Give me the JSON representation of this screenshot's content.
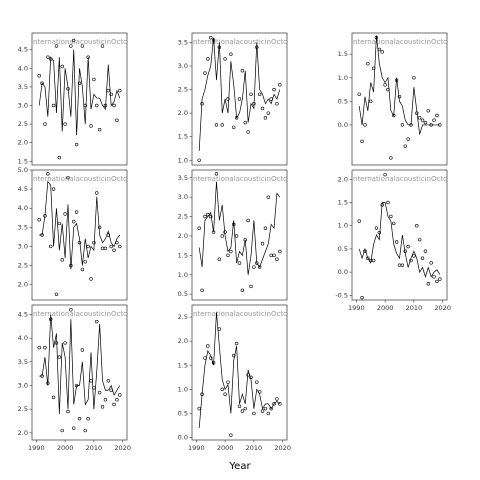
{
  "figure": {
    "xlabel": "Year"
  },
  "chart_data": [
    {
      "type": "line",
      "title": "nternationalacousticinOcto",
      "x": [
        1991,
        1992,
        1993,
        1994,
        1995,
        1996,
        1997,
        1998,
        1999,
        2000,
        2001,
        2002,
        2003,
        2004,
        2005,
        2006,
        2007,
        2008,
        2009,
        2010,
        2011,
        2012,
        2013,
        2014,
        2015,
        2016,
        2017,
        2018,
        2019
      ],
      "xlim": [
        1988.5,
        2021.5
      ],
      "ylim": [
        1.4,
        4.95
      ],
      "yticks": [
        1.5,
        {
          "value": 2,
          "label": "2.0"
        },
        2.5,
        {
          "value": 3,
          "label": "3.0"
        },
        3.5,
        {
          "value": 4,
          "label": "4.0"
        },
        4.5
      ],
      "series": [
        {
          "style": "points",
          "color": "#000000",
          "values": [
            3.8,
            3.6,
            2.5,
            4.3,
            4.25,
            3.0,
            4.6,
            1.6,
            4.05,
            2.5,
            3.45,
            4.6,
            4.75,
            1.95,
            3.6,
            4.6,
            3.0,
            4.3,
            2.45,
            3.7,
            3.0,
            2.35,
            4.6,
            3.0,
            3.4,
            3.3,
            3.0,
            2.6,
            3.4
          ]
        },
        {
          "style": "line",
          "color": "#000000",
          "values": [
            3.0,
            3.6,
            3.5,
            2.7,
            4.3,
            4.2,
            2.8,
            4.3,
            2.3,
            4.0,
            3.5,
            2.7,
            4.5,
            2.2,
            4.0,
            3.5,
            2.5,
            4.3,
            2.9,
            3.3,
            3.2,
            3.2,
            3.0,
            2.9,
            4.1,
            3.0,
            3.1,
            3.4,
            3.2
          ]
        }
      ]
    },
    {
      "type": "line",
      "title": "nternationalacousticinOcto",
      "x": [
        1991,
        1992,
        1993,
        1994,
        1995,
        1996,
        1997,
        1998,
        1999,
        2000,
        2001,
        2002,
        2003,
        2004,
        2005,
        2006,
        2007,
        2008,
        2009,
        2010,
        2011,
        2012,
        2013,
        2014,
        2015,
        2016,
        2017,
        2018,
        2019
      ],
      "xlim": [
        1988.5,
        2021.5
      ],
      "ylim": [
        0.9,
        3.7
      ],
      "yticks": [
        {
          "value": 1,
          "label": "1.0"
        },
        1.5,
        {
          "value": 2,
          "label": "2.0"
        },
        2.5,
        {
          "value": 3,
          "label": "3.0"
        },
        3.5
      ],
      "series": [
        {
          "style": "points",
          "color": "#000000",
          "values": [
            1.0,
            2.2,
            2.85,
            3.15,
            3.6,
            3.55,
            1.75,
            3.4,
            1.75,
            3.15,
            2.3,
            3.25,
            1.7,
            1.9,
            2.3,
            2.9,
            1.8,
            1.6,
            2.4,
            2.2,
            3.4,
            2.4,
            2.1,
            1.9,
            2.0,
            2.3,
            2.5,
            2.2,
            2.6
          ]
        },
        {
          "style": "line",
          "color": "#000000",
          "values": [
            1.2,
            2.3,
            2.5,
            2.8,
            3.0,
            3.6,
            2.7,
            3.5,
            2.0,
            2.3,
            2.0,
            3.1,
            2.6,
            1.9,
            2.0,
            2.3,
            2.9,
            1.8,
            2.2,
            2.1,
            3.5,
            2.5,
            2.4,
            2.2,
            2.3,
            2.2,
            2.4,
            2.3,
            2.5
          ]
        }
      ]
    },
    {
      "type": "line",
      "title": "nternationalacousticinOcto",
      "x": [
        1991,
        1992,
        1993,
        1994,
        1995,
        1996,
        1997,
        1998,
        1999,
        2000,
        2001,
        2002,
        2003,
        2004,
        2005,
        2006,
        2007,
        2008,
        2009,
        2010,
        2011,
        2012,
        2013,
        2014,
        2015,
        2016,
        2017,
        2018,
        2019
      ],
      "xlim": [
        1988.5,
        2021.5
      ],
      "ylim": [
        -0.85,
        1.95
      ],
      "yticks": [
        {
          "value": 0,
          "label": "0.0"
        },
        0.5,
        {
          "value": 1,
          "label": "1.0"
        },
        1.5
      ],
      "series": [
        {
          "style": "points",
          "color": "#000000",
          "values": [
            0.65,
            -0.35,
            0.0,
            1.3,
            0.5,
            1.2,
            1.85,
            1.6,
            1.55,
            0.85,
            0.75,
            -0.7,
            0.2,
            0.95,
            0.6,
            0.0,
            -0.45,
            -0.3,
            0.0,
            1.0,
            0.25,
            0.15,
            0.1,
            0.05,
            0.3,
            0.0,
            0.1,
            0.2,
            0.0
          ]
        },
        {
          "style": "line",
          "color": "#000000",
          "values": [
            0.4,
            0.0,
            0.6,
            0.3,
            0.9,
            0.7,
            1.9,
            1.3,
            1.0,
            0.9,
            1.0,
            0.3,
            0.2,
            1.0,
            0.5,
            0.4,
            0.1,
            0.0,
            0.0,
            0.8,
            0.3,
            -0.2,
            0.0,
            0.0,
            0.0,
            0.0,
            0.0,
            0.0,
            0.0
          ]
        }
      ]
    },
    {
      "type": "line",
      "title": "nternationalacousticinOcto",
      "x": [
        1991,
        1992,
        1993,
        1994,
        1995,
        1996,
        1997,
        1998,
        1999,
        2000,
        2001,
        2002,
        2003,
        2004,
        2005,
        2006,
        2007,
        2008,
        2009,
        2010,
        2011,
        2012,
        2013,
        2014,
        2015,
        2016,
        2017,
        2018,
        2019
      ],
      "xlim": [
        1988.5,
        2021.5
      ],
      "ylim": [
        1.6,
        5.0
      ],
      "yticks": [
        {
          "value": 2,
          "label": "2.0"
        },
        2.5,
        {
          "value": 3,
          "label": "3.0"
        },
        3.5,
        {
          "value": 4,
          "label": "4.0"
        },
        4.5,
        {
          "value": 5,
          "label": "5.0"
        }
      ],
      "series": [
        {
          "style": "points",
          "color": "#000000",
          "values": [
            3.7,
            3.3,
            3.8,
            4.9,
            3.0,
            4.5,
            1.75,
            3.6,
            2.65,
            3.85,
            4.8,
            2.5,
            3.65,
            3.9,
            3.1,
            2.4,
            2.6,
            3.0,
            2.15,
            3.1,
            4.4,
            3.5,
            2.95,
            2.95,
            3.3,
            3.0,
            2.9,
            3.1,
            3.0
          ]
        },
        {
          "style": "line",
          "color": "#000000",
          "values": [
            3.3,
            3.3,
            3.8,
            4.7,
            4.6,
            3.0,
            4.0,
            2.9,
            3.6,
            2.7,
            4.1,
            2.4,
            3.5,
            3.6,
            3.2,
            2.5,
            3.2,
            2.7,
            3.0,
            2.9,
            4.3,
            3.3,
            3.1,
            3.2,
            3.4,
            3.1,
            3.0,
            3.2,
            3.3
          ]
        }
      ]
    },
    {
      "type": "line",
      "title": "nternationalacousticinOcto",
      "x": [
        1991,
        1992,
        1993,
        1994,
        1995,
        1996,
        1997,
        1998,
        1999,
        2000,
        2001,
        2002,
        2003,
        2004,
        2005,
        2006,
        2007,
        2008,
        2009,
        2010,
        2011,
        2012,
        2013,
        2014,
        2015,
        2016,
        2017,
        2018,
        2019
      ],
      "xlim": [
        1988.5,
        2021.5
      ],
      "ylim": [
        0.35,
        3.7
      ],
      "yticks": [
        0.5,
        {
          "value": 1,
          "label": "1.0"
        },
        1.5,
        {
          "value": 2,
          "label": "2.0"
        },
        2.5,
        {
          "value": 3,
          "label": "3.0"
        },
        3.5
      ],
      "series": [
        {
          "style": "points",
          "color": "#000000",
          "values": [
            2.2,
            0.6,
            2.5,
            2.55,
            2.5,
            2.1,
            3.6,
            1.4,
            2.0,
            2.1,
            1.5,
            1.6,
            2.3,
            2.0,
            1.3,
            0.6,
            1.9,
            2.4,
            0.7,
            1.2,
            1.3,
            1.2,
            1.8,
            2.2,
            3.0,
            1.5,
            1.5,
            1.4,
            1.6
          ]
        },
        {
          "style": "line",
          "color": "#000000",
          "values": [
            1.7,
            1.2,
            2.4,
            2.5,
            2.6,
            2.1,
            3.4,
            2.4,
            2.8,
            2.0,
            1.6,
            1.7,
            2.4,
            1.3,
            1.6,
            1.5,
            1.9,
            1.0,
            1.5,
            2.4,
            1.3,
            1.2,
            1.4,
            1.6,
            1.8,
            2.3,
            2.2,
            3.1,
            3.0
          ]
        }
      ]
    },
    {
      "type": "line",
      "title": "nternationalacousticinOcto",
      "x": [
        1991,
        1992,
        1993,
        1994,
        1995,
        1996,
        1997,
        1998,
        1999,
        2000,
        2001,
        2002,
        2003,
        2004,
        2005,
        2006,
        2007,
        2008,
        2009,
        2010,
        2011,
        2012,
        2013,
        2014,
        2015,
        2016,
        2017,
        2018,
        2019
      ],
      "xlim": [
        1988.5,
        2021.5
      ],
      "xticks": [
        1990,
        2000,
        2010,
        2020
      ],
      "ylim": [
        -0.6,
        2.2
      ],
      "yticks": [
        -0.5,
        {
          "value": 0,
          "label": "0.0"
        },
        0.5,
        {
          "value": 1,
          "label": "1.0"
        },
        1.5,
        {
          "value": 2,
          "label": "2.0"
        }
      ],
      "series": [
        {
          "style": "points",
          "color": "#000000",
          "values": [
            1.1,
            -0.55,
            0.45,
            0.3,
            0.25,
            0.25,
            0.95,
            0.85,
            1.45,
            2.1,
            1.5,
            1.2,
            1.05,
            0.65,
            0.15,
            0.15,
            0.45,
            0.55,
            0.25,
            0.35,
            1.0,
            0.7,
            0.3,
            0.45,
            -0.25,
            0.2,
            -0.1,
            -0.2,
            -0.15
          ]
        },
        {
          "style": "line",
          "color": "#000000",
          "values": [
            0.5,
            0.3,
            0.5,
            0.3,
            0.2,
            0.6,
            0.8,
            0.7,
            1.5,
            1.5,
            1.2,
            1.1,
            0.6,
            0.4,
            0.3,
            0.8,
            0.4,
            0.1,
            0.3,
            0.45,
            0.3,
            0.0,
            0.1,
            -0.1,
            0.1,
            -0.1,
            0.0,
            0.05,
            -0.05
          ]
        }
      ]
    },
    {
      "type": "line",
      "title": "nternationalacousticinOcto",
      "x": [
        1991,
        1992,
        1993,
        1994,
        1995,
        1996,
        1997,
        1998,
        1999,
        2000,
        2001,
        2002,
        2003,
        2004,
        2005,
        2006,
        2007,
        2008,
        2009,
        2010,
        2011,
        2012,
        2013,
        2014,
        2015,
        2016,
        2017,
        2018,
        2019
      ],
      "xlim": [
        1988.5,
        2021.5
      ],
      "xticks": [
        1990,
        2000,
        2010,
        2020
      ],
      "ylim": [
        1.85,
        4.7
      ],
      "yticks": [
        {
          "value": 2,
          "label": "2.0"
        },
        2.5,
        {
          "value": 3,
          "label": "3.0"
        },
        3.5,
        {
          "value": 4,
          "label": "4.0"
        },
        4.5
      ],
      "series": [
        {
          "style": "points",
          "color": "#000000",
          "values": [
            3.8,
            3.2,
            3.8,
            3.05,
            4.4,
            2.75,
            3.9,
            3.6,
            2.05,
            3.9,
            2.45,
            4.6,
            2.1,
            3.0,
            2.3,
            3.75,
            2.05,
            2.3,
            3.1,
            2.95,
            4.35,
            2.85,
            2.55,
            2.7,
            3.1,
            2.9,
            2.6,
            2.7,
            2.8
          ]
        },
        {
          "style": "line",
          "color": "#000000",
          "values": [
            3.2,
            3.2,
            3.6,
            3.0,
            4.5,
            3.8,
            4.1,
            2.4,
            3.9,
            3.6,
            2.5,
            4.4,
            2.6,
            3.0,
            3.0,
            3.5,
            2.6,
            2.7,
            3.7,
            2.5,
            3.3,
            4.3,
            3.1,
            2.9,
            2.9,
            3.0,
            2.8,
            2.9,
            3.0
          ]
        }
      ]
    },
    {
      "type": "line",
      "title": "nternationalacousticinOcto",
      "x": [
        1991,
        1992,
        1993,
        1994,
        1995,
        1996,
        1997,
        1998,
        1999,
        2000,
        2001,
        2002,
        2003,
        2004,
        2005,
        2006,
        2007,
        2008,
        2009,
        2010,
        2011,
        2012,
        2013,
        2014,
        2015,
        2016,
        2017,
        2018,
        2019
      ],
      "xlim": [
        1988.5,
        2021.5
      ],
      "xticks": [
        1990,
        2000,
        2010,
        2020
      ],
      "ylim": [
        -0.05,
        2.75
      ],
      "yticks": [
        {
          "value": 0,
          "label": "0.0"
        },
        0.5,
        {
          "value": 1,
          "label": "1.0"
        },
        1.5,
        {
          "value": 2,
          "label": "2.0"
        },
        2.5
      ],
      "series": [
        {
          "style": "points",
          "color": "#000000",
          "values": [
            0.6,
            0.9,
            1.65,
            1.9,
            1.65,
            1.55,
            2.8,
            2.25,
            1.0,
            0.9,
            1.15,
            0.05,
            1.7,
            1.95,
            0.65,
            0.55,
            0.6,
            1.3,
            1.25,
            0.5,
            1.15,
            0.95,
            0.55,
            0.6,
            0.5,
            0.6,
            0.7,
            0.8,
            0.7
          ]
        },
        {
          "style": "line",
          "color": "#000000",
          "values": [
            0.2,
            0.9,
            1.5,
            1.8,
            1.7,
            1.5,
            2.6,
            1.9,
            1.2,
            1.0,
            1.1,
            0.5,
            1.6,
            1.9,
            0.7,
            0.9,
            0.7,
            1.4,
            1.2,
            0.6,
            1.0,
            0.9,
            0.6,
            0.7,
            0.7,
            0.6,
            0.7,
            0.75,
            0.7
          ]
        }
      ]
    }
  ]
}
